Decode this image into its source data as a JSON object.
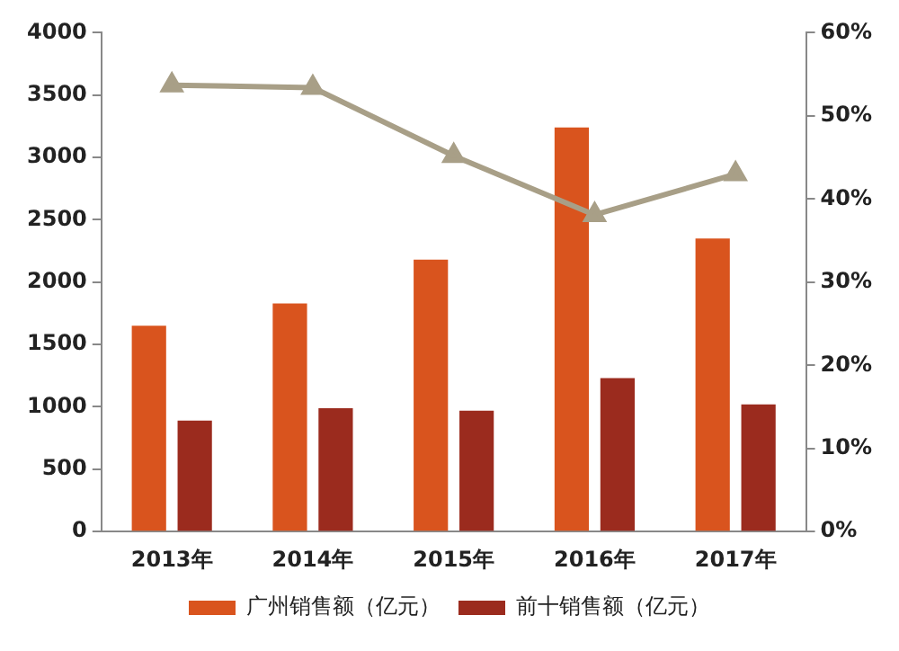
{
  "chart_data": {
    "type": "bar",
    "categories": [
      "2013年",
      "2014年",
      "2015年",
      "2016年",
      "2017年"
    ],
    "series": [
      {
        "name": "广州销售额（亿元）",
        "color": "#d9541e",
        "values": [
          1650,
          1830,
          2180,
          3240,
          2350
        ]
      },
      {
        "name": "前十销售额（亿元）",
        "color": "#9b2b1e",
        "values": [
          890,
          990,
          970,
          1230,
          1020
        ]
      },
      {
        "type": "line",
        "axis": "y2",
        "color": "#a89f87",
        "marker": "triangle",
        "values": [
          53.7,
          53.4,
          45.2,
          38.1,
          43
        ]
      }
    ],
    "ylim": [
      0,
      4000
    ],
    "yticks": [
      0,
      500,
      1000,
      1500,
      2000,
      2500,
      3000,
      3500,
      4000
    ],
    "y2lim": [
      0,
      60
    ],
    "y2ticks": [
      {
        "value": 0,
        "label": "0%"
      },
      {
        "value": 10,
        "label": "10%"
      },
      {
        "value": 20,
        "label": "20%"
      },
      {
        "value": 30,
        "label": "30%"
      },
      {
        "value": 40,
        "label": "40%"
      },
      {
        "value": 50,
        "label": "50%"
      },
      {
        "value": 60,
        "label": "60%"
      }
    ],
    "grid": false,
    "legend": "bottom"
  }
}
